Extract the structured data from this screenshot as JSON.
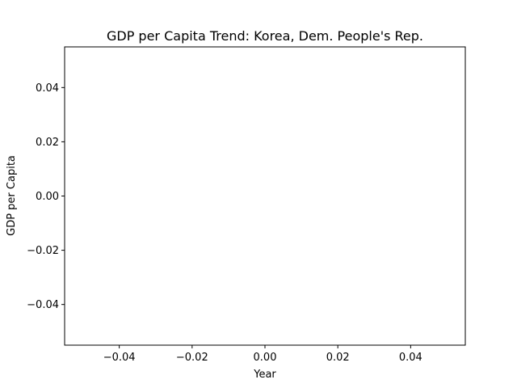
{
  "chart_data": {
    "type": "line",
    "title": "GDP per Capita Trend: Korea, Dem. People's Rep.",
    "xlabel": "Year",
    "ylabel": "GDP per Capita",
    "xlim": [
      -0.055,
      0.055
    ],
    "ylim": [
      -0.055,
      0.055
    ],
    "x_ticks": [
      -0.04,
      -0.02,
      0.0,
      0.02,
      0.04
    ],
    "x_tick_labels": [
      "−0.04",
      "−0.02",
      "0.00",
      "0.02",
      "0.04"
    ],
    "y_ticks": [
      -0.04,
      -0.02,
      0.0,
      0.02,
      0.04
    ],
    "y_tick_labels": [
      "−0.04",
      "−0.02",
      "0.00",
      "0.02",
      "0.04"
    ],
    "grid": false,
    "series": [
      {
        "x": [],
        "y": [],
        "color": "#1f77b4"
      }
    ]
  }
}
